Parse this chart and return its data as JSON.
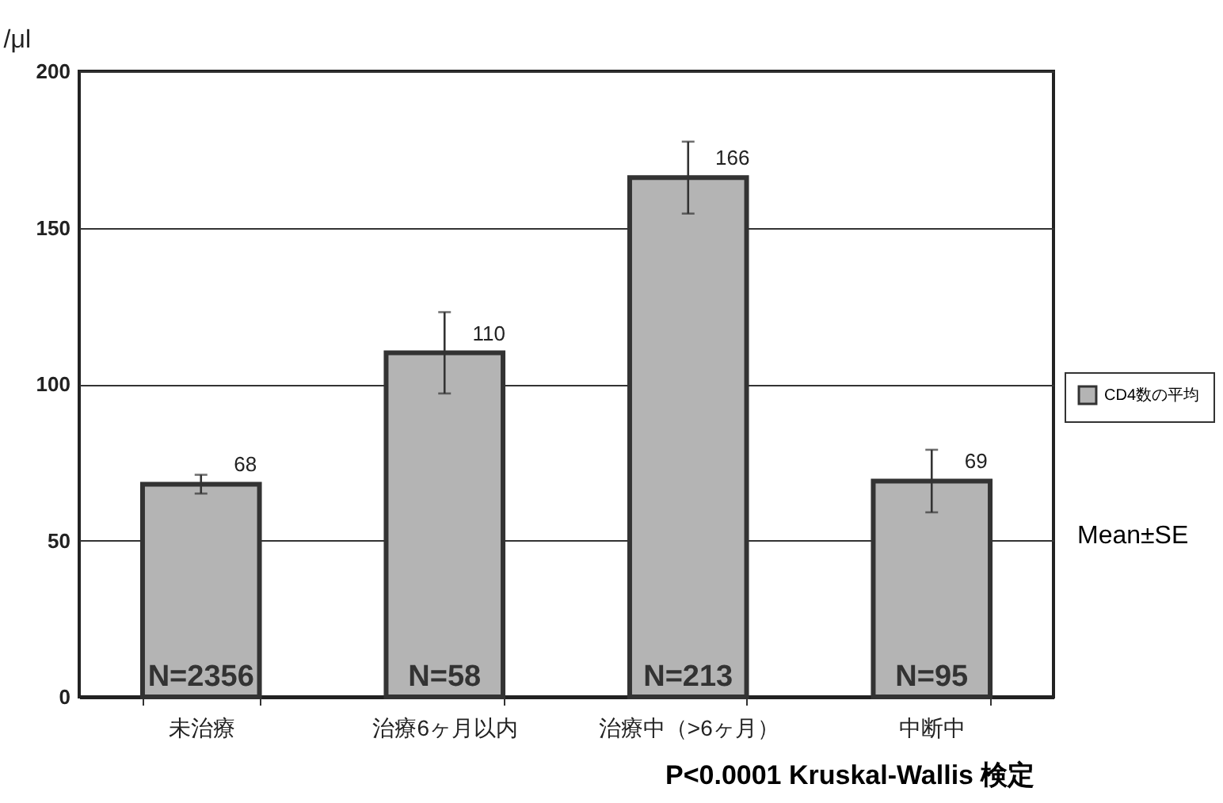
{
  "chart_data": {
    "type": "bar",
    "ylabel": "/μl",
    "categories": [
      "未治療",
      "治療6ヶ月以内",
      "治療中（>6ヶ月）",
      "中断中"
    ],
    "series": [
      {
        "name": "CD4数の平均",
        "color": "#b4b4b4",
        "values": [
          68,
          110,
          166,
          69
        ],
        "errors": [
          3,
          13,
          11.5,
          10
        ]
      }
    ],
    "data_labels": true,
    "ylim": [
      0,
      200
    ],
    "yticks": [
      0,
      50,
      100,
      150,
      200
    ],
    "grid": "y",
    "legend": "right",
    "annotations": [
      {
        "text": "N=2356",
        "x": "未治療",
        "y": 0
      },
      {
        "text": "N=58",
        "x": "治療6ヶ月以内",
        "y": 0
      },
      {
        "text": "N=213",
        "x": "治療中（>6ヶ月）",
        "y": 0
      },
      {
        "text": "N=95",
        "x": "中断中",
        "y": 0
      },
      "Mean±SE",
      "P<0.0001 Kruskal-Wallis 検定"
    ]
  }
}
